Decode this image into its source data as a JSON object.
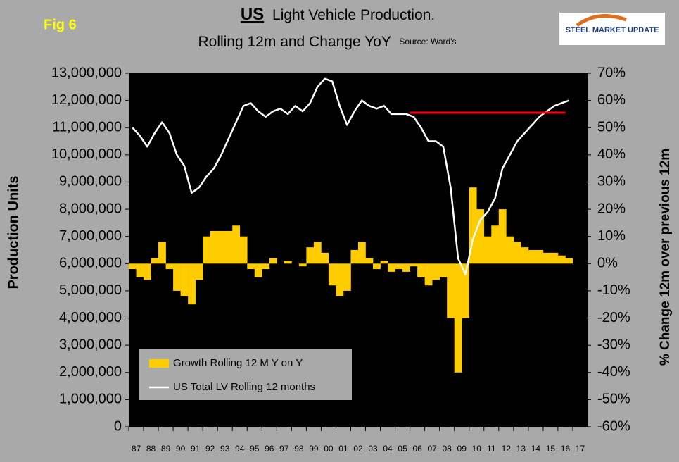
{
  "chart_data": {
    "type": "bar-line",
    "fig": "Fig 6",
    "title_us": "US",
    "title": "Light Vehicle Production.",
    "subtitle": "Rolling 12m and Change YoY",
    "source": "Source: Ward's",
    "logo": "STEEL MARKET UPDATE",
    "ylabel": "Production Units",
    "y2label": "% Change 12m over previous 12m",
    "categories": [
      "87",
      null,
      "88",
      null,
      "89",
      null,
      "90",
      null,
      "91",
      null,
      "92",
      null,
      "93",
      null,
      "94",
      null,
      "95",
      null,
      "96",
      null,
      "97",
      null,
      "98",
      null,
      "99",
      null,
      "00",
      null,
      "01",
      null,
      "02",
      null,
      "03",
      null,
      "04",
      null,
      "05",
      null,
      "06",
      null,
      "07",
      null,
      "08",
      null,
      "09",
      null,
      "10",
      null,
      "11",
      null,
      "12",
      null,
      "13",
      null,
      "14",
      null,
      "15",
      null,
      "16",
      null,
      "17",
      null
    ],
    "series": [
      {
        "name": "Growth Rolling 12 M Y on Y",
        "color": "#ffcc00",
        "axis": "y2",
        "kind": "bar",
        "values": [
          -2,
          -5,
          -6,
          2,
          8,
          -2,
          -10,
          -12,
          -15,
          -6,
          10,
          12,
          12,
          12,
          14,
          10,
          -2,
          -5,
          -2,
          2,
          0,
          1,
          0,
          -1,
          6,
          8,
          4,
          -8,
          -12,
          -10,
          5,
          8,
          2,
          -2,
          1,
          -3,
          -2,
          -3,
          -1,
          -5,
          -8,
          -6,
          -5,
          -20,
          -40,
          -20,
          28,
          20,
          10,
          14,
          20,
          10,
          8,
          6,
          5,
          5,
          4,
          4,
          3,
          2,
          null,
          null
        ]
      },
      {
        "name": "US Total LV Rolling 12 months",
        "color": "#ffffff",
        "axis": "y",
        "kind": "line",
        "values": [
          11000000,
          10700000,
          10300000,
          10800000,
          11200000,
          10800000,
          10000000,
          9600000,
          8600000,
          8800000,
          9200000,
          9500000,
          10000000,
          10600000,
          11200000,
          11800000,
          11900000,
          11600000,
          11400000,
          11600000,
          11700000,
          11500000,
          11800000,
          11600000,
          11900000,
          12500000,
          12800000,
          12700000,
          11800000,
          11100000,
          11600000,
          12000000,
          11800000,
          11700000,
          11800000,
          11500000,
          11500000,
          11500000,
          11400000,
          11000000,
          10500000,
          10500000,
          10300000,
          8800000,
          6200000,
          5600000,
          6900000,
          7600000,
          7900000,
          8400000,
          9500000,
          10000000,
          10500000,
          10800000,
          11100000,
          11400000,
          11600000,
          11800000,
          11900000,
          12000000,
          null,
          null
        ]
      }
    ],
    "reference_line": {
      "value": 11550000,
      "color": "#ff0000",
      "start": "06",
      "end": "16"
    },
    "ylim": [
      0,
      13000000
    ],
    "yticks": [
      {
        "value": 0,
        "label": "0"
      },
      {
        "value": 1000000,
        "label": "1,000,000"
      },
      {
        "value": 2000000,
        "label": "2,000,000"
      },
      {
        "value": 3000000,
        "label": "3,000,000"
      },
      {
        "value": 4000000,
        "label": "4,000,000"
      },
      {
        "value": 5000000,
        "label": "5,000,000"
      },
      {
        "value": 6000000,
        "label": "6,000,000"
      },
      {
        "value": 7000000,
        "label": "7,000,000"
      },
      {
        "value": 8000000,
        "label": "8,000,000"
      },
      {
        "value": 9000000,
        "label": "9,000,000"
      },
      {
        "value": 10000000,
        "label": "10,000,000"
      },
      {
        "value": 11000000,
        "label": "11,000,000"
      },
      {
        "value": 12000000,
        "label": "12,000,000"
      },
      {
        "value": 13000000,
        "label": "13,000,000"
      }
    ],
    "y2lim": [
      -60,
      70
    ],
    "y2ticks": [
      {
        "value": -60,
        "label": "-60%"
      },
      {
        "value": -50,
        "label": "-50%"
      },
      {
        "value": -40,
        "label": "-40%"
      },
      {
        "value": -30,
        "label": "-30%"
      },
      {
        "value": -20,
        "label": "-20%"
      },
      {
        "value": -10,
        "label": "-10%"
      },
      {
        "value": 0,
        "label": "0%"
      },
      {
        "value": 10,
        "label": "10%"
      },
      {
        "value": 20,
        "label": "20%"
      },
      {
        "value": 30,
        "label": "30%"
      },
      {
        "value": 40,
        "label": "40%"
      },
      {
        "value": 50,
        "label": "50%"
      },
      {
        "value": 60,
        "label": "60%"
      },
      {
        "value": 70,
        "label": "70%"
      }
    ],
    "legend": "lower left",
    "background": "#000000"
  }
}
